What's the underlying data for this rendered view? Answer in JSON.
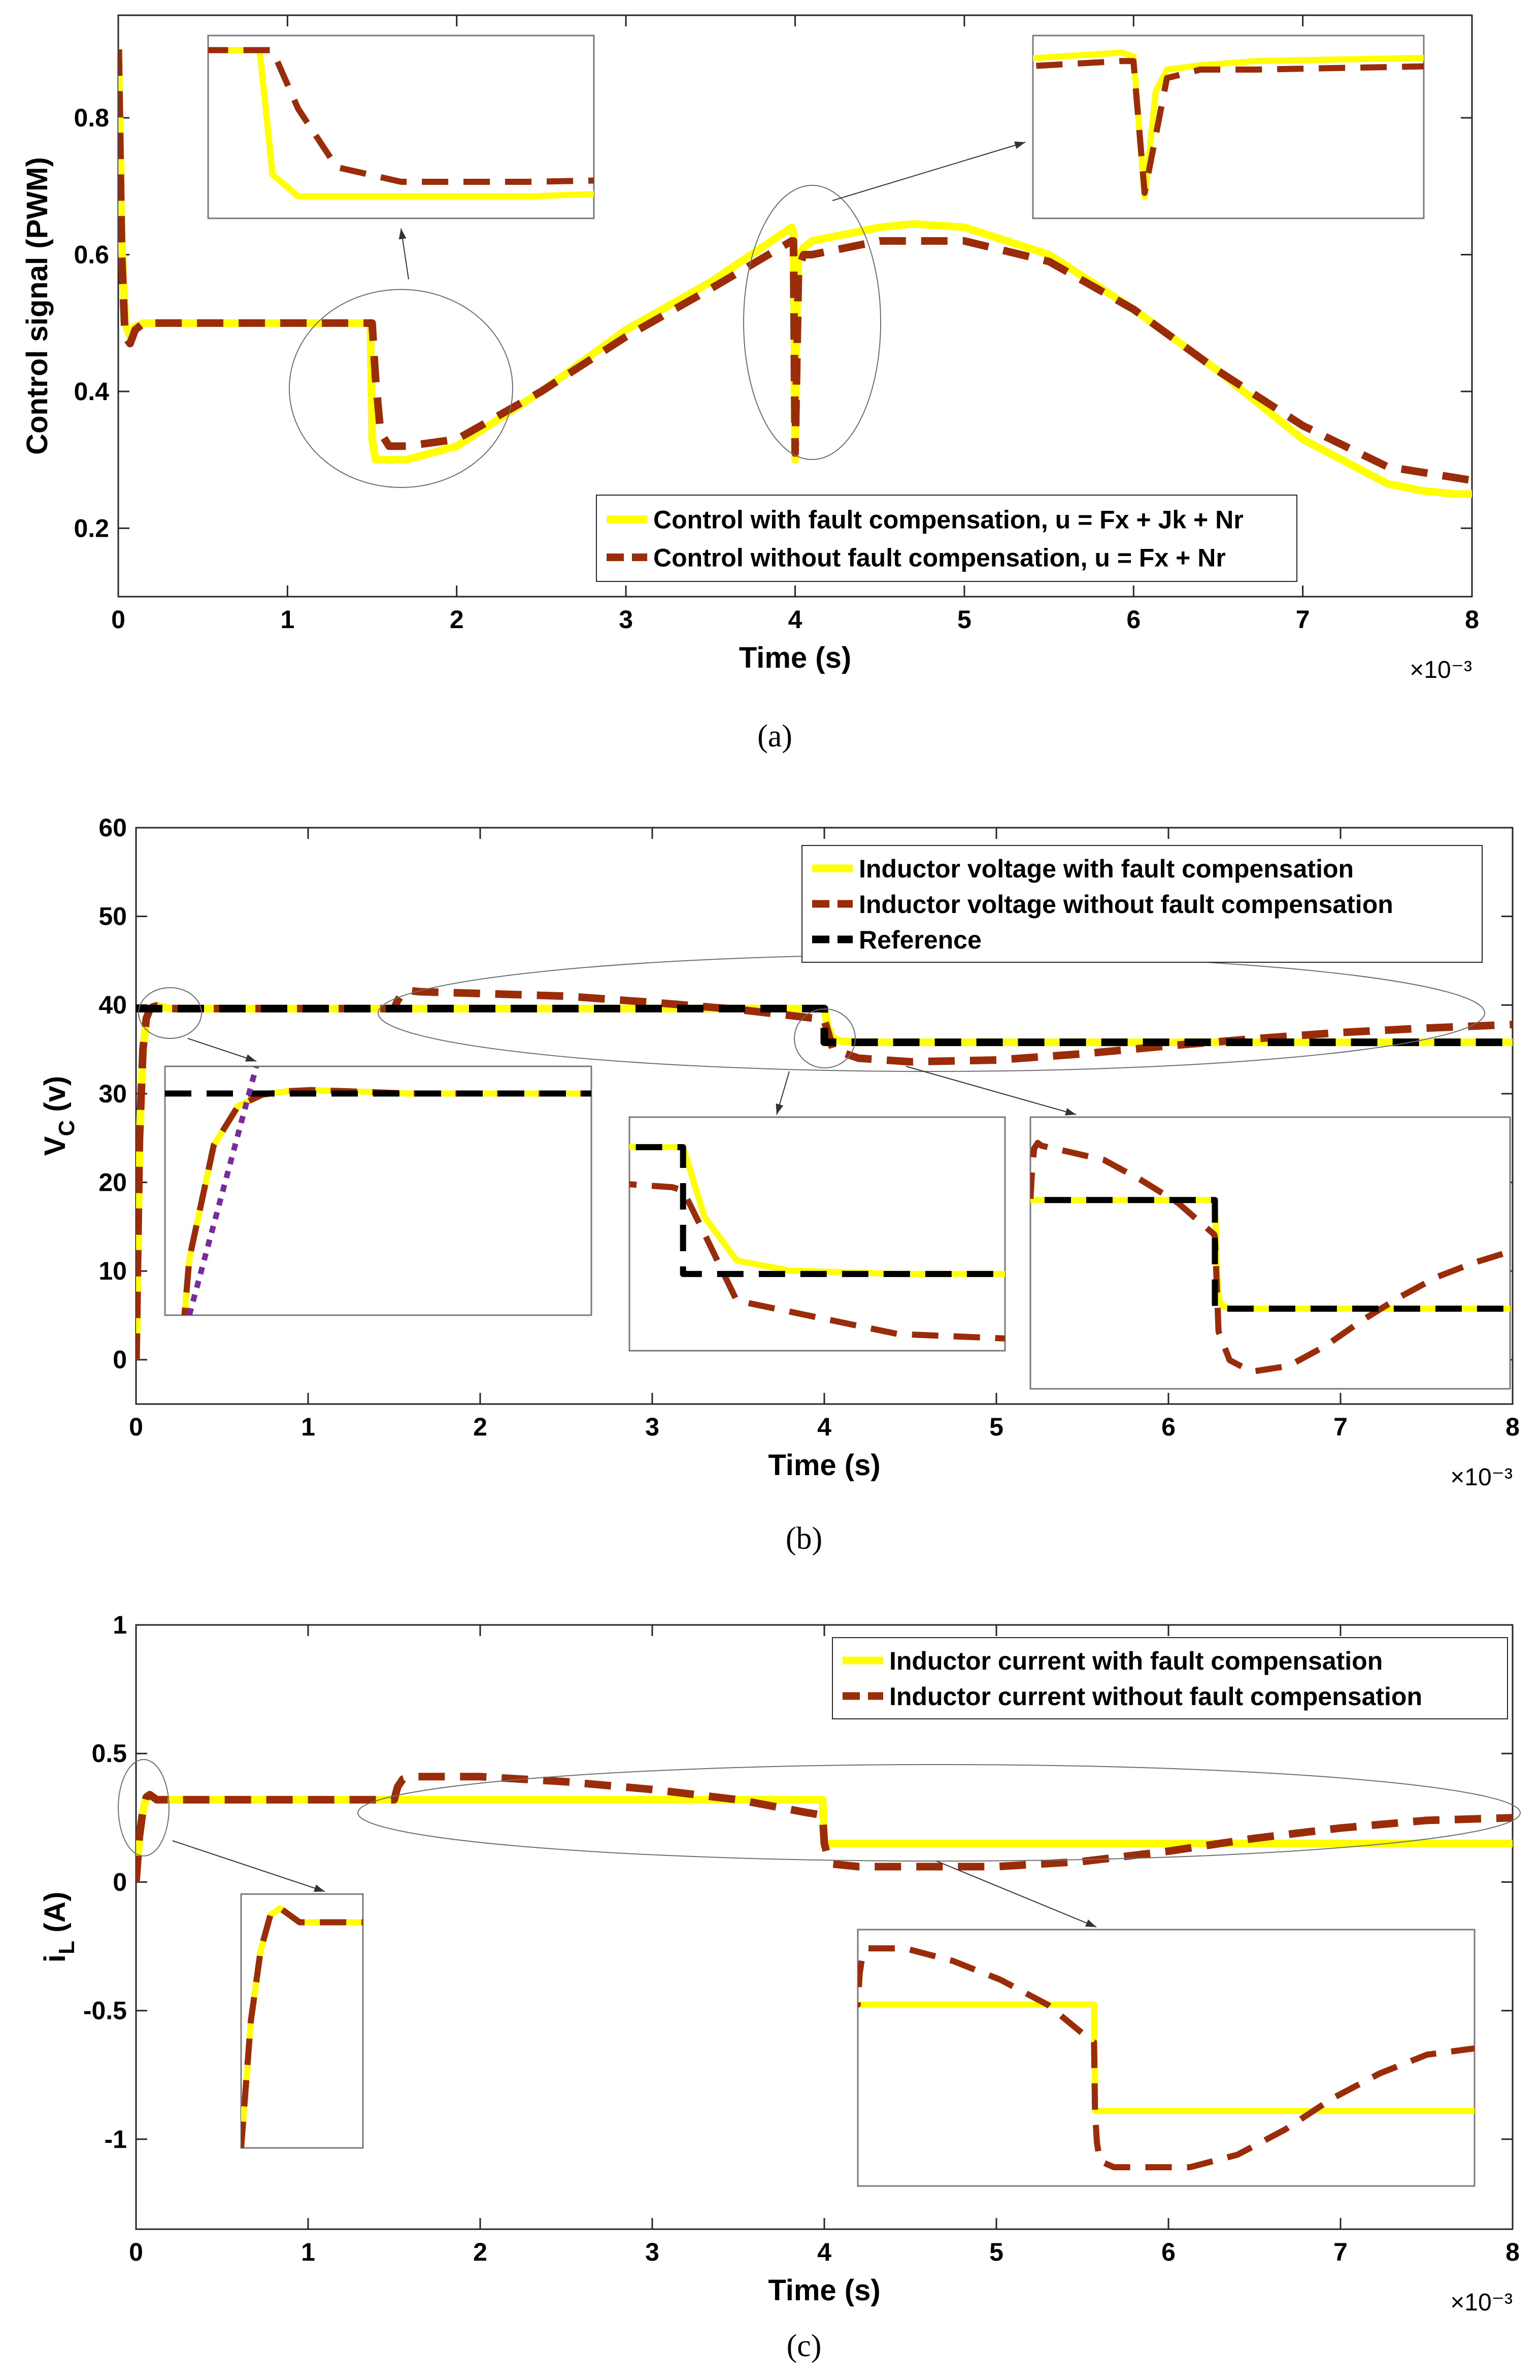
{
  "chart_data": [
    {
      "id": "a",
      "type": "line",
      "caption": "(a)",
      "xlabel": "Time (s)",
      "ylabel": "Control signal (PWM)",
      "x_exponent": "×10⁻³",
      "xlim": [
        0,
        8
      ],
      "ylim": [
        0.1,
        0.95
      ],
      "xticks": [
        "0",
        "1",
        "2",
        "3",
        "4",
        "5",
        "6",
        "7",
        "8"
      ],
      "yticks": [
        {
          "v": 0.2,
          "label": "0.2"
        },
        {
          "v": 0.4,
          "label": "0.4"
        },
        {
          "v": 0.6,
          "label": "0.6"
        },
        {
          "v": 0.8,
          "label": "0.8"
        }
      ],
      "series": [
        {
          "name": "Control with fault compensation, u = Fx + Jk + Nr",
          "color": "#ffff00",
          "dash": false,
          "x": [
            0,
            0.02,
            0.04,
            0.07,
            0.1,
            0.15,
            1.0,
            1.49,
            1.5,
            1.52,
            1.7,
            2.0,
            2.5,
            3.0,
            3.5,
            3.98,
            3.99,
            4.0,
            4.01,
            4.02,
            4.05,
            4.1,
            4.3,
            4.5,
            4.7,
            5.0,
            5.5,
            6.0,
            6.5,
            7.0,
            7.5,
            7.7,
            7.9,
            8.0
          ],
          "y": [
            0.9,
            0.62,
            0.5,
            0.48,
            0.495,
            0.5,
            0.5,
            0.5,
            0.33,
            0.3,
            0.3,
            0.32,
            0.4,
            0.49,
            0.56,
            0.64,
            0.63,
            0.3,
            0.55,
            0.6,
            0.61,
            0.62,
            0.63,
            0.64,
            0.645,
            0.64,
            0.6,
            0.52,
            0.43,
            0.33,
            0.265,
            0.255,
            0.25,
            0.25
          ]
        },
        {
          "name": "Control without fault compensation, u = Fx + Nr",
          "color": "#9b2c0a",
          "dash": true,
          "x": [
            0,
            0.02,
            0.04,
            0.07,
            0.1,
            0.15,
            1.0,
            1.5,
            1.52,
            1.55,
            1.6,
            1.7,
            2.0,
            2.5,
            3.0,
            3.5,
            3.98,
            3.99,
            4.0,
            4.02,
            4.05,
            4.1,
            4.3,
            4.5,
            5.0,
            5.5,
            6.0,
            6.5,
            7.0,
            7.5,
            8.0
          ],
          "y": [
            0.9,
            0.6,
            0.48,
            0.47,
            0.49,
            0.5,
            0.5,
            0.5,
            0.42,
            0.34,
            0.32,
            0.32,
            0.33,
            0.4,
            0.48,
            0.55,
            0.62,
            0.62,
            0.31,
            0.58,
            0.6,
            0.6,
            0.61,
            0.62,
            0.62,
            0.59,
            0.52,
            0.43,
            0.35,
            0.29,
            0.27
          ]
        }
      ]
    },
    {
      "id": "b",
      "type": "line",
      "caption": "(b)",
      "xlabel": "Time (s)",
      "ylabel": "V",
      "ylabel_sub": "C",
      "ylabel_suffix": " (v)",
      "x_exponent": "×10⁻³",
      "xlim": [
        0,
        8
      ],
      "ylim": [
        -5,
        60
      ],
      "xticks": [
        "0",
        "1",
        "2",
        "3",
        "4",
        "5",
        "6",
        "7",
        "8"
      ],
      "yticks": [
        {
          "v": 0,
          "label": "0"
        },
        {
          "v": 10,
          "label": "10"
        },
        {
          "v": 20,
          "label": "20"
        },
        {
          "v": 30,
          "label": "30"
        },
        {
          "v": 40,
          "label": "40"
        },
        {
          "v": 50,
          "label": "50"
        },
        {
          "v": 60,
          "label": "60"
        }
      ],
      "series": [
        {
          "name": "Inductor voltage with fault compensation",
          "color": "#ffff00",
          "dash": false,
          "x": [
            0,
            0.02,
            0.04,
            0.06,
            0.08,
            0.1,
            0.12,
            0.15,
            0.2,
            1.0,
            3.9,
            4.0,
            4.02,
            4.05,
            4.1,
            4.2,
            6.0,
            8.0
          ],
          "y": [
            0,
            25,
            35,
            38.5,
            39.5,
            39.8,
            39.9,
            39.8,
            39.6,
            39.6,
            39.6,
            39.6,
            37.5,
            36.2,
            35.9,
            35.8,
            35.8,
            35.8
          ]
        },
        {
          "name": "Inductor voltage without fault compensation",
          "color": "#9b2c0a",
          "dash": true,
          "x": [
            0,
            0.02,
            0.04,
            0.06,
            0.08,
            0.1,
            0.12,
            0.15,
            0.2,
            1.0,
            1.5,
            1.52,
            1.55,
            1.6,
            1.65,
            2.0,
            2.5,
            3.0,
            3.5,
            3.9,
            3.99,
            4.0,
            4.02,
            4.05,
            4.2,
            4.5,
            5.0,
            5.5,
            6.0,
            6.5,
            7.0,
            7.5,
            8.0
          ],
          "y": [
            0,
            25,
            35,
            38.5,
            39.5,
            39.8,
            39.9,
            39.8,
            39.6,
            39.6,
            39.6,
            40.5,
            41.4,
            41.6,
            41.5,
            41.3,
            41,
            40.3,
            39.5,
            38.6,
            38.4,
            38.3,
            37,
            35,
            34,
            33.6,
            33.8,
            34.5,
            35.4,
            36.2,
            36.9,
            37.4,
            37.8
          ]
        },
        {
          "name": "Reference",
          "color": "#000000",
          "dash": true,
          "x": [
            0,
            0.01,
            4.0,
            4.0,
            8.0
          ],
          "y": [
            39.6,
            39.6,
            39.6,
            35.8,
            35.8
          ]
        }
      ]
    },
    {
      "id": "c",
      "type": "line",
      "caption": "(c)",
      "xlabel": "Time (s)",
      "ylabel": "i",
      "ylabel_sub": "L",
      "ylabel_suffix": " (A)",
      "x_exponent": "×10⁻³",
      "xlim": [
        0,
        8
      ],
      "ylim": [
        -1.35,
        1.0
      ],
      "xticks": [
        "0",
        "1",
        "2",
        "3",
        "4",
        "5",
        "6",
        "7",
        "8"
      ],
      "yticks": [
        {
          "v": -1,
          "label": "-1"
        },
        {
          "v": -0.5,
          "label": "-0.5"
        },
        {
          "v": 0,
          "label": "0"
        },
        {
          "v": 0.5,
          "label": "0.5"
        },
        {
          "v": 1,
          "label": "1"
        }
      ],
      "series": [
        {
          "name": "Inductor current with fault compensation",
          "color": "#ffff00",
          "dash": false,
          "x": [
            0,
            0.02,
            0.04,
            0.06,
            0.08,
            0.1,
            0.12,
            0.15,
            3.99,
            4.0,
            4.02,
            8.0
          ],
          "y": [
            0,
            0.18,
            0.28,
            0.33,
            0.34,
            0.33,
            0.32,
            0.32,
            0.32,
            0.15,
            0.15,
            0.15
          ]
        },
        {
          "name": "Inductor current without fault compensation",
          "color": "#9b2c0a",
          "dash": true,
          "x": [
            0,
            0.02,
            0.04,
            0.06,
            0.08,
            0.1,
            0.12,
            0.15,
            1.5,
            1.52,
            1.55,
            1.6,
            1.7,
            2.0,
            2.5,
            3.0,
            3.5,
            3.9,
            3.99,
            4.0,
            4.02,
            4.05,
            4.2,
            4.5,
            5.0,
            5.5,
            6.0,
            6.5,
            7.0,
            7.5,
            8.0
          ],
          "y": [
            0,
            0.18,
            0.28,
            0.33,
            0.34,
            0.33,
            0.32,
            0.32,
            0.32,
            0.37,
            0.4,
            0.41,
            0.41,
            0.41,
            0.39,
            0.36,
            0.32,
            0.27,
            0.26,
            0.15,
            0.1,
            0.07,
            0.06,
            0.06,
            0.06,
            0.08,
            0.12,
            0.17,
            0.21,
            0.24,
            0.25
          ]
        }
      ]
    }
  ]
}
